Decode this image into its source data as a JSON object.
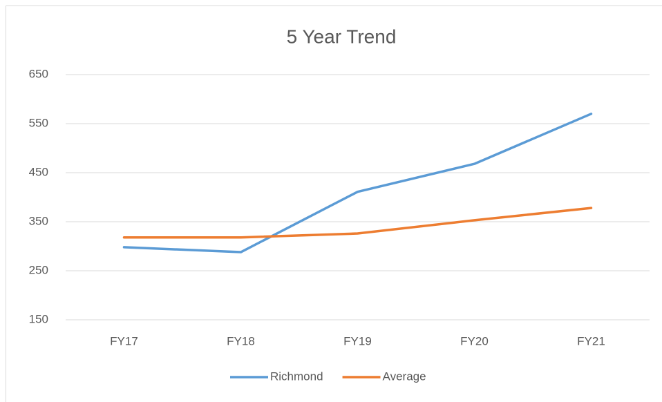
{
  "chart_data": {
    "type": "line",
    "title": "5 Year Trend",
    "categories": [
      "FY17",
      "FY18",
      "FY19",
      "FY20",
      "FY21"
    ],
    "series": [
      {
        "name": "Richmond",
        "color": "#5b9bd5",
        "values": [
          298,
          288,
          411,
          468,
          570
        ]
      },
      {
        "name": "Average",
        "color": "#ed7d31",
        "values": [
          318,
          318,
          326,
          353,
          378
        ]
      }
    ],
    "ylim": [
      150,
      650
    ],
    "yticks": [
      150,
      250,
      350,
      450,
      550,
      650
    ],
    "grid": true,
    "legend": "bottom"
  }
}
